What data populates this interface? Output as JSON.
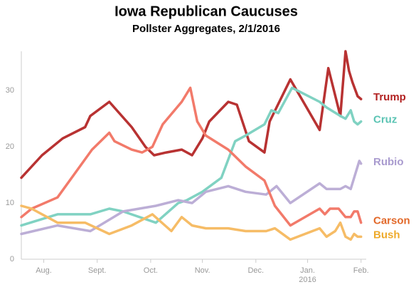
{
  "chart_data": {
    "type": "line",
    "title": "Iowa Republican Caucuses",
    "subtitle": "Pollster Aggregates, 2/1/2016",
    "xlim": [
      -13,
      187
    ],
    "xticks": [
      {
        "value": 0,
        "label": "Aug."
      },
      {
        "value": 31,
        "label": "Sept."
      },
      {
        "value": 62,
        "label": "Oct."
      },
      {
        "value": 92,
        "label": "Nov."
      },
      {
        "value": 123,
        "label": "Dec."
      },
      {
        "value": 153,
        "label": "Jan."
      },
      {
        "value": 184,
        "label": "Feb."
      }
    ],
    "year_label": "2016",
    "ylim": [
      0,
      37
    ],
    "yticks": [
      0,
      10,
      20,
      30
    ],
    "grid": false,
    "series": [
      {
        "name": "Trump",
        "color": "#b83232",
        "label_color": "#b22222",
        "x": [
          -13,
          -1,
          11,
          24,
          27,
          38,
          51,
          59,
          64,
          71,
          80,
          86,
          92,
          96,
          107,
          112,
          119,
          128,
          131,
          143,
          160,
          165,
          172,
          175,
          177,
          179,
          182,
          184
        ],
        "values": [
          14.5,
          18.5,
          21.5,
          23.5,
          25.5,
          28,
          23.5,
          20,
          18.5,
          19,
          19.5,
          18.5,
          21.5,
          24.5,
          28,
          27.5,
          21,
          19,
          24.5,
          32,
          23,
          34,
          25.5,
          37,
          33.5,
          31.5,
          29,
          28.5
        ]
      },
      {
        "name": "Cruz",
        "color": "#80d2c2",
        "label_color": "#5cc4b4",
        "x": [
          -13,
          8,
          23,
          27,
          38,
          46,
          65,
          78,
          83,
          92,
          103,
          111,
          117,
          128,
          132,
          136,
          144,
          160,
          164,
          172,
          175,
          178,
          180,
          182,
          184
        ],
        "values": [
          6,
          8,
          8,
          8,
          9,
          8.5,
          6.5,
          10,
          10.5,
          12,
          14.5,
          21,
          22,
          24,
          26.5,
          26,
          30.5,
          28,
          27,
          25.5,
          25,
          26.5,
          24.5,
          24,
          24.5
        ]
      },
      {
        "name": "Rubio",
        "color": "#bcaed6",
        "label_color": "#a99bcf",
        "x": [
          -13,
          8,
          27,
          46,
          65,
          78,
          86,
          94,
          107,
          117,
          129,
          135,
          143,
          160,
          164,
          172,
          175,
          178,
          180,
          183,
          184
        ],
        "values": [
          4.5,
          6,
          5,
          8.5,
          9.5,
          10.5,
          10,
          12,
          13,
          12,
          11.5,
          13,
          10,
          13.5,
          12.5,
          12.5,
          13,
          12.5,
          14.5,
          17.5,
          17
        ]
      },
      {
        "name": "Carson",
        "color": "#f27a6a",
        "label_color": "#e2692a",
        "x": [
          -13,
          -7,
          8,
          28,
          38,
          41,
          51,
          57,
          63,
          69,
          80,
          85,
          89,
          94,
          107,
          117,
          128,
          134,
          143,
          160,
          163,
          166,
          171,
          175,
          178,
          180,
          182,
          184
        ],
        "values": [
          7.5,
          9,
          11,
          19.5,
          22.5,
          21,
          19.5,
          19,
          20,
          24,
          28,
          30.5,
          24.5,
          22,
          19.5,
          16.5,
          14,
          9.5,
          6,
          9,
          8,
          9,
          9,
          7.5,
          7.5,
          8.5,
          8.5,
          6.5
        ]
      },
      {
        "name": "Bush",
        "color": "#f6bc66",
        "label_color": "#eeaa2c",
        "x": [
          -13,
          -7,
          8,
          24,
          38,
          51,
          63,
          74,
          80,
          86,
          94,
          107,
          117,
          129,
          134,
          143,
          160,
          164,
          169,
          172,
          175,
          178,
          180,
          182,
          184
        ],
        "values": [
          9.5,
          9,
          6.5,
          6.5,
          4.5,
          6,
          8,
          5,
          7.5,
          6,
          5.5,
          5.5,
          5,
          5,
          5.5,
          3.5,
          5.5,
          4,
          5,
          6.5,
          4,
          3.5,
          4.5,
          4,
          4
        ]
      }
    ]
  }
}
